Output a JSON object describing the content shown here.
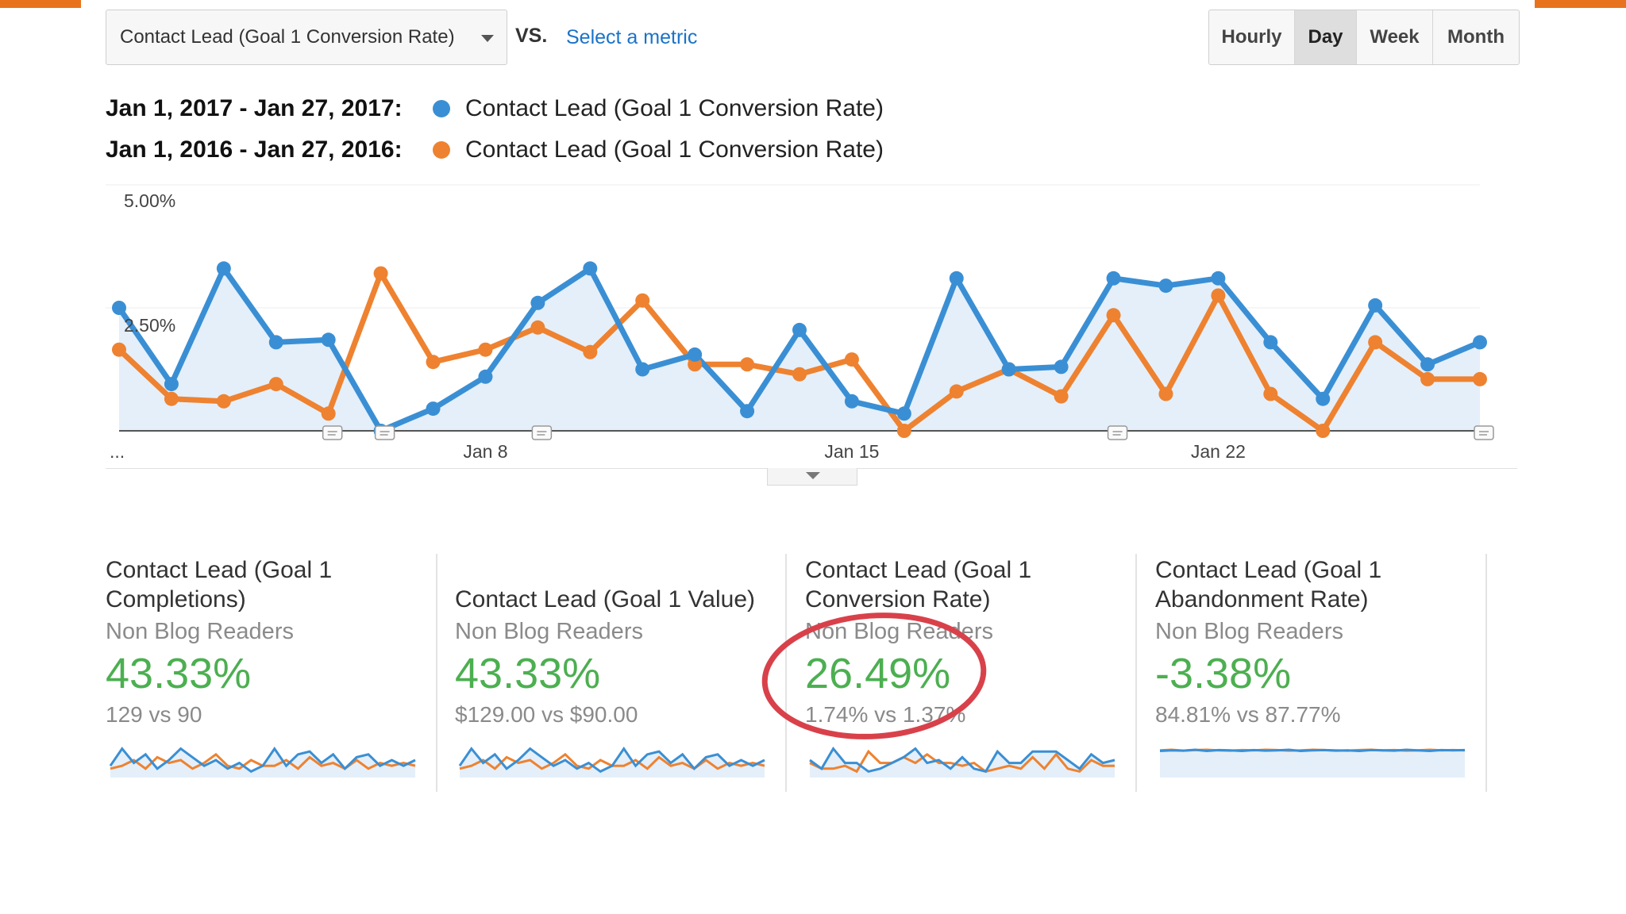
{
  "colors": {
    "accent_orange": "#e8731e",
    "series_2017": "#3a8fd4",
    "series_2016": "#ee8230",
    "area_fill": "#e4effa",
    "link_blue": "#1a73c8",
    "positive_green": "#4caf50",
    "highlight_red": "#d9414a"
  },
  "toolbar": {
    "metric_selected": "Contact Lead (Goal 1 Conversion Rate)",
    "vs_label": "VS.",
    "select_metric_label": "Select a metric",
    "granularity": [
      {
        "label": "Hourly",
        "active": false
      },
      {
        "label": "Day",
        "active": true
      },
      {
        "label": "Week",
        "active": false
      },
      {
        "label": "Month",
        "active": false
      }
    ]
  },
  "legend": [
    {
      "range": "Jan 1, 2017 - Jan 27, 2017:",
      "name": "Contact Lead (Goal 1 Conversion Rate)",
      "color": "#3a8fd4"
    },
    {
      "range": "Jan 1, 2016 - Jan 27, 2016:",
      "name": "Contact Lead (Goal 1 Conversion Rate)",
      "color": "#ee8230"
    }
  ],
  "chart_data": {
    "type": "line",
    "x": [
      1,
      2,
      3,
      4,
      5,
      6,
      7,
      8,
      9,
      10,
      11,
      12,
      13,
      14,
      15,
      16,
      17,
      18,
      19,
      20,
      21,
      22,
      23,
      24,
      25,
      26,
      27
    ],
    "x_tick_labels": [
      "...",
      "Jan 8",
      "Jan 15",
      "Jan 22"
    ],
    "y_tick_labels": [
      "5.00%",
      "2.50%"
    ],
    "ylim": [
      0,
      5
    ],
    "grid": true,
    "area_under_first_series": true,
    "annotation_markers_at_x": [
      5,
      6,
      9,
      20,
      27
    ],
    "series": [
      {
        "name": "Jan 1, 2017 - Jan 27, 2017",
        "color": "#3a8fd4",
        "values": [
          2.5,
          0.95,
          3.3,
          1.8,
          1.85,
          0.0,
          0.45,
          1.1,
          2.6,
          3.3,
          1.25,
          1.55,
          0.4,
          2.05,
          0.6,
          0.35,
          3.1,
          1.25,
          1.3,
          3.1,
          2.95,
          3.1,
          1.8,
          0.65,
          2.55,
          1.35,
          1.8
        ]
      },
      {
        "name": "Jan 1, 2016 - Jan 27, 2016",
        "color": "#ee8230",
        "values": [
          1.65,
          0.65,
          0.6,
          0.95,
          0.35,
          3.2,
          1.4,
          1.65,
          2.1,
          1.6,
          2.65,
          1.35,
          1.35,
          1.15,
          1.45,
          0.0,
          0.8,
          1.25,
          0.7,
          2.35,
          0.75,
          2.75,
          0.75,
          0.0,
          1.8,
          1.05,
          1.05
        ]
      }
    ]
  },
  "scorecards": [
    {
      "title": "Contact Lead (Goal 1 Completions)",
      "segment": "Non Blog Readers",
      "change": "43.33%",
      "compare": "129 vs 90",
      "highlighted": false,
      "spark_a": [
        0.3,
        0.9,
        0.4,
        0.7,
        0.2,
        0.5,
        0.9,
        0.6,
        0.3,
        0.5,
        0.2,
        0.4,
        0.1,
        0.3,
        0.9,
        0.3,
        0.7,
        0.8,
        0.4,
        0.7,
        0.2,
        0.6,
        0.7,
        0.3,
        0.5,
        0.3,
        0.5
      ],
      "spark_b": [
        0.2,
        0.3,
        0.5,
        0.2,
        0.6,
        0.4,
        0.5,
        0.2,
        0.4,
        0.7,
        0.3,
        0.2,
        0.5,
        0.3,
        0.3,
        0.5,
        0.2,
        0.6,
        0.3,
        0.4,
        0.2,
        0.5,
        0.2,
        0.4,
        0.3,
        0.4,
        0.3
      ]
    },
    {
      "title": "Contact Lead (Goal 1 Value)",
      "segment": "Non Blog Readers",
      "change": "43.33%",
      "compare": "$129.00 vs $90.00",
      "highlighted": false,
      "spark_a": [
        0.3,
        0.9,
        0.4,
        0.7,
        0.2,
        0.5,
        0.9,
        0.6,
        0.3,
        0.5,
        0.2,
        0.4,
        0.1,
        0.3,
        0.9,
        0.3,
        0.7,
        0.8,
        0.4,
        0.7,
        0.2,
        0.6,
        0.7,
        0.3,
        0.5,
        0.3,
        0.5
      ],
      "spark_b": [
        0.2,
        0.3,
        0.5,
        0.2,
        0.6,
        0.4,
        0.5,
        0.2,
        0.4,
        0.7,
        0.3,
        0.2,
        0.5,
        0.3,
        0.3,
        0.5,
        0.2,
        0.6,
        0.3,
        0.4,
        0.2,
        0.5,
        0.2,
        0.4,
        0.3,
        0.4,
        0.3
      ]
    },
    {
      "title": "Contact Lead (Goal 1 Conversion Rate)",
      "segment": "Non Blog Readers",
      "change": "26.49%",
      "compare": "1.74% vs 1.37%",
      "highlighted": true,
      "spark_a": [
        0.5,
        0.2,
        0.9,
        0.4,
        0.4,
        0.1,
        0.2,
        0.4,
        0.6,
        0.9,
        0.4,
        0.5,
        0.2,
        0.6,
        0.2,
        0.1,
        0.8,
        0.4,
        0.4,
        0.8,
        0.8,
        0.8,
        0.5,
        0.2,
        0.7,
        0.4,
        0.5
      ],
      "spark_b": [
        0.4,
        0.2,
        0.2,
        0.3,
        0.1,
        0.8,
        0.4,
        0.4,
        0.6,
        0.4,
        0.7,
        0.4,
        0.4,
        0.3,
        0.4,
        0.1,
        0.2,
        0.3,
        0.2,
        0.6,
        0.2,
        0.7,
        0.2,
        0.1,
        0.5,
        0.3,
        0.3
      ]
    },
    {
      "title": "Contact Lead (Goal 1 Abandonment Rate)",
      "segment": "Non Blog Readers",
      "change": "-3.38%",
      "compare": "84.81% vs 87.77%",
      "highlighted": false,
      "spark_a": [
        0.82,
        0.84,
        0.83,
        0.86,
        0.82,
        0.85,
        0.84,
        0.82,
        0.85,
        0.83,
        0.84,
        0.86,
        0.82,
        0.84,
        0.85,
        0.83,
        0.84,
        0.82,
        0.85,
        0.84,
        0.83,
        0.86,
        0.84,
        0.82,
        0.85,
        0.84,
        0.85
      ],
      "spark_b": [
        0.84,
        0.86,
        0.83,
        0.85,
        0.86,
        0.84,
        0.83,
        0.85,
        0.84,
        0.86,
        0.85,
        0.83,
        0.84,
        0.86,
        0.85,
        0.84,
        0.83,
        0.85,
        0.86,
        0.84,
        0.85,
        0.83,
        0.84,
        0.86,
        0.84,
        0.85,
        0.84
      ]
    }
  ]
}
